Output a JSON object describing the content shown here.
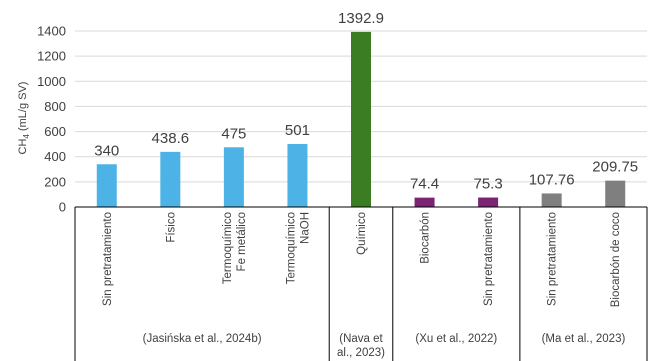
{
  "chart_data": {
    "type": "bar",
    "ylabel_main": "CH",
    "ylabel_sub": "4",
    "ylabel_rest": " (mL/g SV)",
    "ylim": [
      0,
      1400
    ],
    "yticks": [
      0,
      200,
      400,
      600,
      800,
      1000,
      1200,
      1400
    ],
    "grid": true,
    "categories": [
      {
        "lines": [
          "Sin pretratamiento"
        ],
        "value": 340,
        "label": "340",
        "color": "#4db3e6"
      },
      {
        "lines": [
          "Físico"
        ],
        "value": 438.6,
        "label": "438.6",
        "color": "#4db3e6"
      },
      {
        "lines": [
          "Termoquímico",
          "Fe metálico"
        ],
        "value": 475,
        "label": "475",
        "color": "#4db3e6"
      },
      {
        "lines": [
          "Termoquímico",
          "NaOH"
        ],
        "value": 501,
        "label": "501",
        "color": "#4db3e6"
      },
      {
        "lines": [
          "Químico"
        ],
        "value": 1392.9,
        "label": "1392.9",
        "color": "#3a7d22"
      },
      {
        "lines": [
          "Biocarbón"
        ],
        "value": 74.4,
        "label": "74.4",
        "color": "#7b2473"
      },
      {
        "lines": [
          "Sin pretratamiento"
        ],
        "value": 75.3,
        "label": "75.3",
        "color": "#7b2473"
      },
      {
        "lines": [
          "Sin pretratamiento"
        ],
        "value": 107.76,
        "label": "107.76",
        "color": "#7f7f7f"
      },
      {
        "lines": [
          "Biocarbón de coco"
        ],
        "value": 209.75,
        "label": "209.75",
        "color": "#7f7f7f"
      }
    ],
    "groups": [
      {
        "lines": [
          "(Jasińska et al., 2024b)"
        ],
        "start": 0,
        "end": 3
      },
      {
        "lines": [
          "(Nava et",
          "al., 2023)"
        ],
        "start": 4,
        "end": 4
      },
      {
        "lines": [
          "(Xu et al., 2022)"
        ],
        "start": 5,
        "end": 6
      },
      {
        "lines": [
          "(Ma et al., 2023)"
        ],
        "start": 7,
        "end": 8
      }
    ]
  }
}
